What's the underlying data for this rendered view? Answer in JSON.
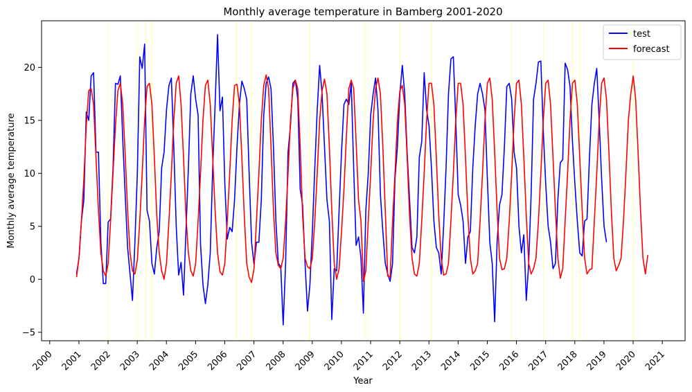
{
  "chart_data": {
    "type": "line",
    "title": "Monthly average temperature in Bamberg 2001-2020",
    "xlabel": "Year",
    "ylabel": "Monthly average temperature",
    "xlim": [
      1999.72,
      2021.78
    ],
    "ylim": [
      -5.8,
      24.4
    ],
    "x_ticks": [
      2000,
      2001,
      2002,
      2003,
      2004,
      2005,
      2006,
      2007,
      2008,
      2009,
      2010,
      2011,
      2012,
      2013,
      2014,
      2015,
      2016,
      2017,
      2018,
      2019,
      2020,
      2021
    ],
    "y_ticks": [
      -5,
      0,
      5,
      10,
      15,
      20
    ],
    "grid": false,
    "legend": {
      "position": "top-right",
      "entries": [
        "test",
        "forecast"
      ]
    },
    "vlines": {
      "color": "#ffff99",
      "x": [
        2002.0,
        2003.0,
        2003.3,
        2003.5,
        2006.4,
        2006.92,
        2008.92,
        2010.83,
        2012.0,
        2013.08,
        2015.83,
        2016.92,
        2017.92,
        2018.17,
        2020.0
      ]
    },
    "series": [
      {
        "name": "test",
        "color": "#0000ff",
        "x_start": 2000.92,
        "x_step": 0.08333,
        "values": [
          0.5,
          2.0,
          5.5,
          7.5,
          15.8,
          15.0,
          19.2,
          19.5,
          12.0,
          12.0,
          3.5,
          -0.4,
          -0.4,
          5.4,
          5.7,
          10.5,
          18.5,
          18.4,
          19.2,
          13.2,
          8.0,
          3.0,
          0.5,
          -2.0,
          3.5,
          10.0,
          21.0,
          19.9,
          22.2,
          6.5,
          5.5,
          1.5,
          0.5,
          3.0,
          4.5,
          10.5,
          12.0,
          16.0,
          18.3,
          19.0,
          12.5,
          5.0,
          0.4,
          1.6,
          -1.5,
          4.5,
          10.5,
          17.5,
          19.2,
          17.0,
          15.5,
          3.3,
          -0.5,
          -2.3,
          -0.5,
          2.5,
          10.5,
          16.5,
          23.1,
          15.9,
          17.2,
          9.0,
          3.8,
          4.9,
          4.5,
          7.5,
          12.5,
          16.5,
          18.7,
          18.0,
          17.0,
          10.0,
          3.5,
          1.4,
          3.5,
          3.5,
          7.5,
          15.5,
          18.5,
          19.1,
          18.0,
          12.5,
          5.5,
          1.5,
          1.2,
          -4.3,
          1.5,
          12.0,
          14.5,
          18.5,
          18.8,
          17.0,
          8.5,
          7.0,
          1.5,
          -3.0,
          -0.5,
          4.5,
          10.5,
          16.0,
          20.2,
          17.5,
          12.5,
          7.5,
          5.5,
          -3.8,
          1.0,
          0.8,
          6.5,
          12.0,
          16.5,
          17.0,
          16.5,
          18.5,
          10.5,
          3.2,
          4.0,
          2.0,
          -3.2,
          6.5,
          10.0,
          15.5,
          17.5,
          19.0,
          16.0,
          8.0,
          4.5,
          1.5,
          0.5,
          -0.2,
          1.5,
          9.5,
          12.5,
          17.5,
          20.2,
          17.5,
          12.0,
          7.5,
          3.0,
          2.5,
          4.0,
          11.5,
          13.0,
          19.5,
          16.0,
          14.5,
          10.5,
          5.5,
          3.0,
          2.5,
          0.5,
          5.0,
          10.5,
          17.5,
          20.8,
          21.0,
          15.0,
          8.0,
          7.0,
          5.5,
          1.5,
          4.0,
          4.5,
          10.5,
          14.5,
          17.5,
          18.5,
          17.5,
          16.0,
          9.5,
          3.5,
          1.5,
          -4.0,
          3.5,
          7.0,
          8.0,
          12.5,
          18.2,
          18.5,
          17.0,
          12.0,
          10.5,
          5.0,
          2.5,
          4.2,
          -2.0,
          1.5,
          8.0,
          17.0,
          18.5,
          20.5,
          20.6,
          14.0,
          9.0,
          5.0,
          3.5,
          1.0,
          1.5,
          7.5,
          11.0,
          11.3,
          20.4,
          19.8,
          18.2,
          13.0,
          9.0,
          5.5,
          2.5,
          2.2,
          5.5,
          5.7,
          11.5,
          16.5,
          18.5,
          19.9,
          15.0,
          9.5,
          5.0,
          3.5
        ]
      },
      {
        "name": "forecast",
        "color": "#ff0000",
        "x_start": 2000.92,
        "x_step": 0.08333,
        "values": [
          0.2,
          2.0,
          5.5,
          9.5,
          14.5,
          17.8,
          18.0,
          16.5,
          11.5,
          6.5,
          2.5,
          0.8,
          0.3,
          1.5,
          5.5,
          10.0,
          14.5,
          17.8,
          18.5,
          16.5,
          11.8,
          6.5,
          2.5,
          0.8,
          0.5,
          1.8,
          5.5,
          10.0,
          15.0,
          18.2,
          18.5,
          16.5,
          11.5,
          6.0,
          2.5,
          0.8,
          0.0,
          1.5,
          5.5,
          10.0,
          15.0,
          18.5,
          19.2,
          16.5,
          11.5,
          6.0,
          2.5,
          0.8,
          0.3,
          1.5,
          5.5,
          10.0,
          15.0,
          18.3,
          18.8,
          16.5,
          11.5,
          6.5,
          2.5,
          0.7,
          0.4,
          1.5,
          5.5,
          10.0,
          15.0,
          18.3,
          18.4,
          16.5,
          11.5,
          6.0,
          1.5,
          0.2,
          -0.3,
          1.0,
          5.5,
          10.0,
          15.0,
          18.3,
          19.3,
          18.0,
          12.5,
          6.5,
          2.5,
          1.3,
          1.0,
          2.0,
          5.5,
          10.0,
          15.0,
          18.0,
          18.8,
          18.0,
          12.5,
          6.0,
          2.0,
          1.2,
          1.0,
          2.0,
          5.5,
          10.0,
          15.0,
          17.8,
          18.9,
          17.5,
          12.5,
          6.5,
          1.5,
          0.0,
          1.0,
          4.5,
          8.5,
          13.5,
          18.0,
          18.8,
          18.0,
          13.0,
          7.5,
          5.5,
          -0.2,
          0.8,
          5.5,
          10.0,
          15.0,
          18.0,
          19.0,
          17.5,
          12.5,
          6.5,
          0.3,
          0.2,
          5.5,
          10.0,
          15.0,
          17.8,
          18.3,
          16.5,
          11.5,
          6.0,
          2.0,
          0.5,
          0.3,
          1.5,
          5.5,
          10.0,
          15.0,
          18.5,
          18.5,
          16.5,
          11.5,
          6.0,
          2.0,
          0.4,
          0.5,
          1.5,
          5.5,
          10.0,
          15.0,
          18.5,
          18.5,
          16.5,
          11.5,
          6.0,
          2.0,
          0.5,
          0.8,
          1.5,
          5.5,
          10.0,
          15.0,
          18.5,
          19.0,
          17.0,
          12.0,
          6.5,
          2.0,
          0.9,
          1.0,
          2.0,
          5.5,
          10.0,
          15.0,
          18.5,
          18.8,
          16.5,
          11.5,
          6.0,
          1.5,
          0.5,
          1.0,
          2.0,
          5.5,
          10.0,
          15.0,
          18.5,
          18.8,
          16.5,
          11.5,
          6.5,
          2.0,
          0.1,
          1.0,
          5.5,
          10.0,
          15.0,
          18.5,
          18.8,
          16.5,
          11.5,
          6.5,
          2.0,
          0.5,
          0.9,
          1.0,
          5.5,
          10.0,
          15.0,
          18.5,
          19.0,
          17.0,
          12.0,
          6.5,
          2.0,
          0.8,
          1.3,
          2.0,
          5.5,
          10.0,
          15.0,
          17.5,
          19.2,
          17.0,
          12.0,
          6.5,
          2.0,
          0.5,
          2.3
        ]
      }
    ]
  }
}
